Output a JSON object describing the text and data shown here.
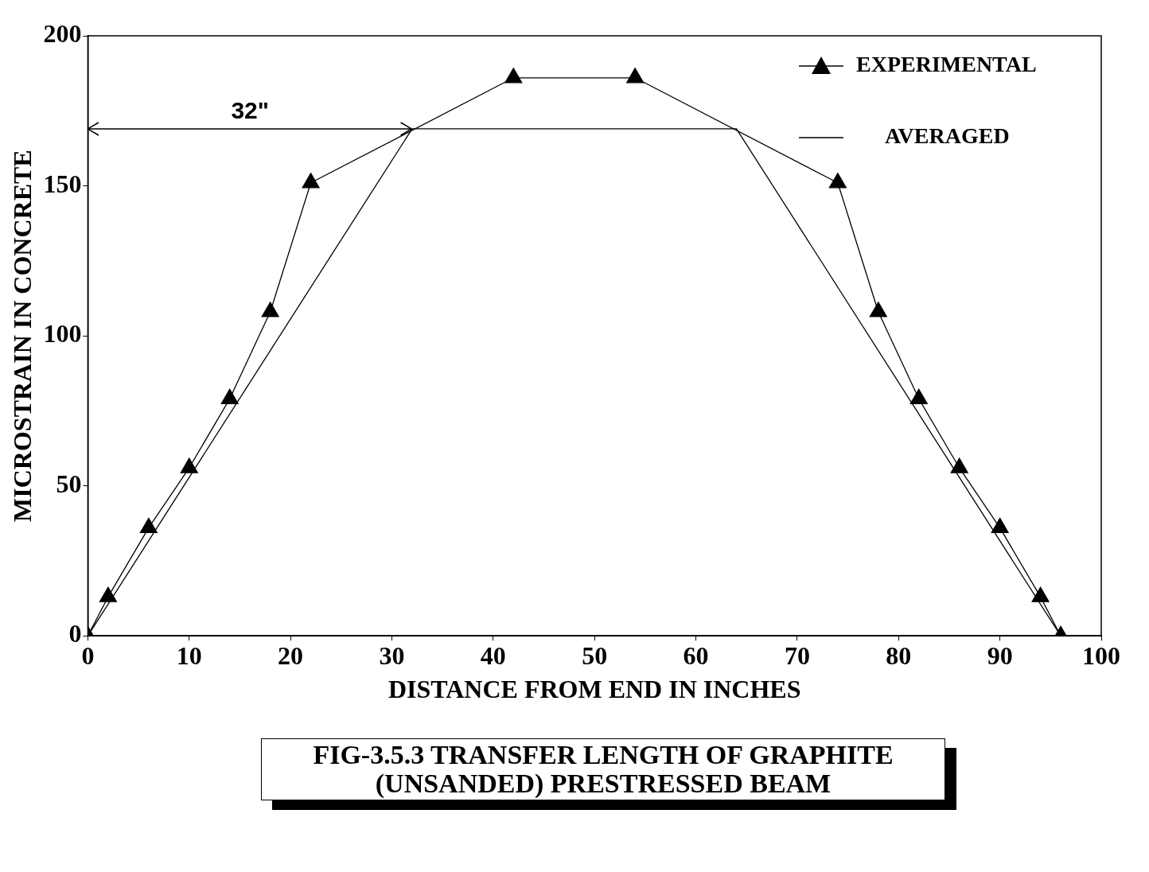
{
  "chart_data": {
    "type": "line",
    "title": "FIG-3.5.3 TRANSFER LENGTH OF GRAPHITE (UNSANDED) PRESTRESSED BEAM",
    "xlabel": "DISTANCE FROM END IN INCHES",
    "ylabel": "MICROSTRAIN IN CONCRETE",
    "series": [
      {
        "name": "EXPERIMENTAL",
        "color": "#000000",
        "marker": "triangle",
        "x": [
          0,
          2,
          6,
          10,
          14,
          18,
          22,
          42,
          54,
          74,
          78,
          82,
          86,
          90,
          94,
          96
        ],
        "values": [
          0,
          13,
          36,
          56,
          79,
          108,
          151,
          186,
          186,
          151,
          108,
          79,
          56,
          36,
          13,
          0
        ]
      },
      {
        "name": "AVERAGED",
        "color": "#000000",
        "marker": "none",
        "x": [
          0,
          32,
          64,
          96
        ],
        "values": [
          0,
          169,
          169,
          0
        ]
      }
    ],
    "annotations": [
      "32\""
    ],
    "xlim": [
      0,
      100
    ],
    "xticks": [
      0,
      10,
      20,
      30,
      40,
      50,
      60,
      70,
      80,
      90,
      100
    ],
    "ylim": [
      0,
      200
    ],
    "yticks": [
      0,
      50,
      100,
      150,
      200
    ],
    "grid": false,
    "legend": "top right",
    "line_style": "solid"
  }
}
